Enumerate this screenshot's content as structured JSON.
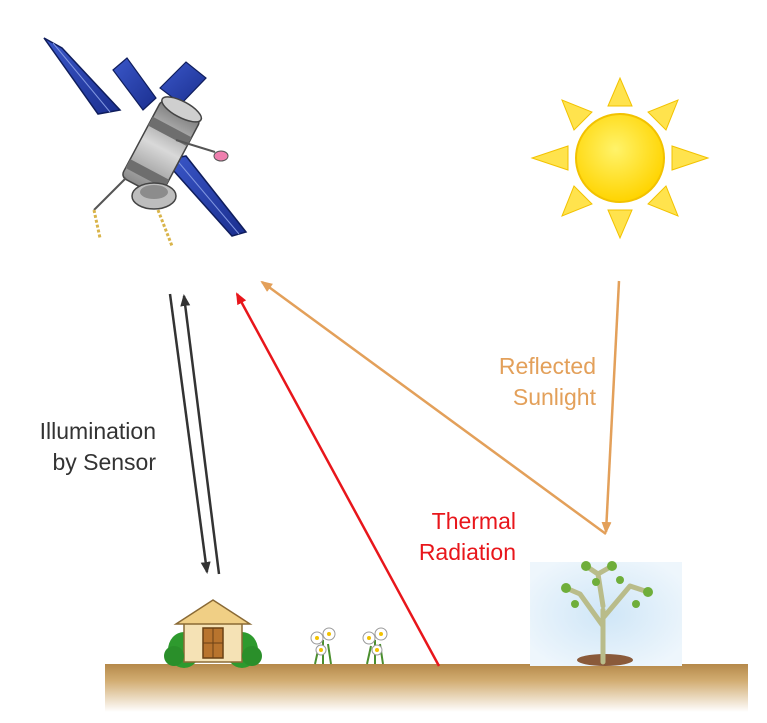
{
  "labels": {
    "illumination": [
      "Illumination",
      "by Sensor"
    ],
    "thermal": [
      "Thermal",
      "Radiation"
    ],
    "reflected": [
      "Reflected",
      "Sunlight"
    ]
  },
  "colors": {
    "illumination": "#333333",
    "thermal": "#e8161b",
    "reflected": "#e3a05a",
    "ground": "#c8a05a",
    "sun": "#ffe000"
  },
  "icons": {
    "satellite": "satellite-icon",
    "sun": "sun-icon",
    "house": "house-icon",
    "flowers": "flower-icon",
    "tree": "tree-icon"
  }
}
